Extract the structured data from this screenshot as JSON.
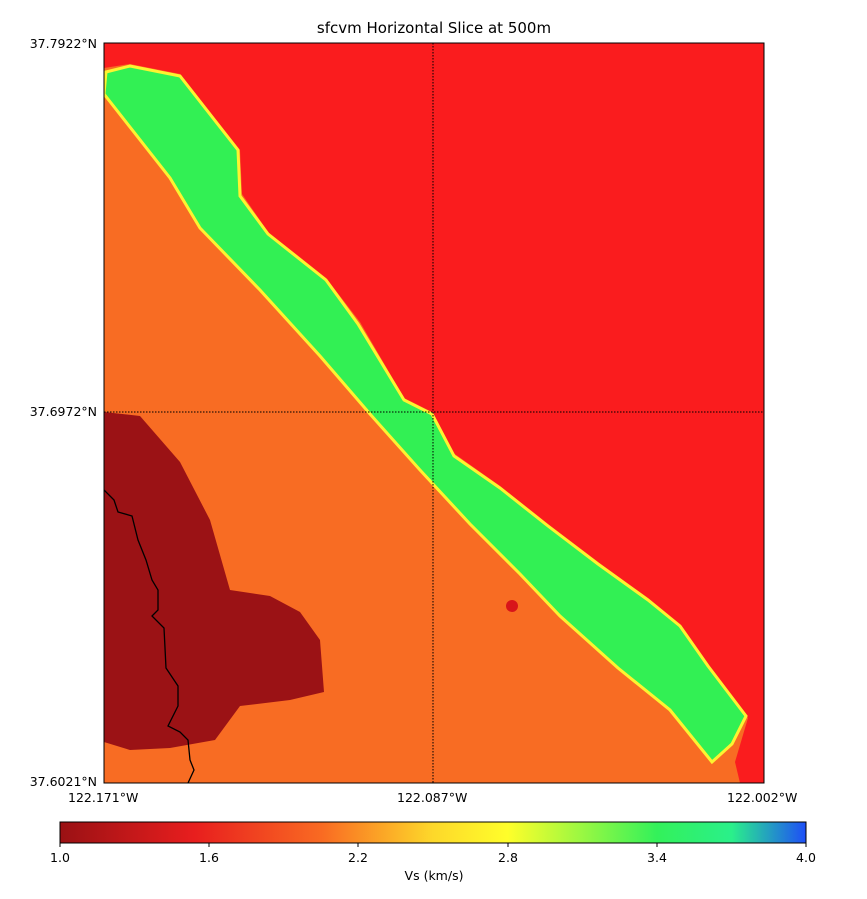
{
  "title": "sfcvm Horizontal Slice at 500m",
  "lat_labels": [
    "37.7922°N",
    "37.6972°N",
    "37.6021°N"
  ],
  "lon_labels": [
    "122.171°W",
    "122.087°W",
    "122.002°W"
  ],
  "colorbar": {
    "title": "Vs (km/s)",
    "ticks": [
      "1.0",
      "1.6",
      "2.2",
      "2.8",
      "3.4",
      "4.0"
    ],
    "colors": [
      "#9a1114",
      "#e81e1e",
      "#f96a22",
      "#fffe2a",
      "#33f15a",
      "#1e4ef7"
    ]
  },
  "regions": [
    {
      "name": "northeast",
      "color": "#fa1c1e"
    },
    {
      "name": "fault-band",
      "color": "#32f054"
    },
    {
      "name": "central",
      "color": "#f86c23"
    },
    {
      "name": "southwest",
      "color": "#9b1215"
    }
  ]
}
